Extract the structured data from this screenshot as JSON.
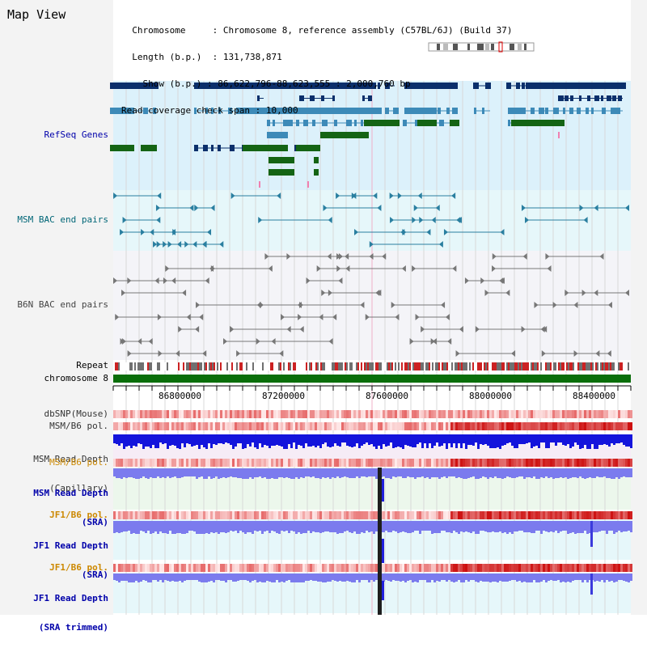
{
  "title": "Map View",
  "info": {
    "chromosome_label": "Chromosome",
    "chromosome_value": "Chromosome 8, reference assembly (C57BL/6J) (Build 37)",
    "length_label": "Length (b.p.)",
    "length_value": "131,738,871",
    "show_label": "Show (b.p.)",
    "show_value": "86,622,796-88,623,555 : 2,000,760 bp",
    "coverage_label": "Read coverage check span",
    "coverage_value": "10,000"
  },
  "tracks": {
    "refseq": "RefSeq Genes",
    "msm_bac": "MSM BAC end pairs",
    "b6n_bac": "B6N BAC end pairs",
    "repeat": "Repeat",
    "chromosome": "chromosome 8",
    "dbsnp": "dbSNP(Mouse)",
    "msm_b6_pol": "MSM/B6 pol.",
    "msm_depth_cap_1": "MSM Read Depth",
    "msm_depth_cap_2": "(Capillary)",
    "msm_b6_pol_sra": "MSM/B6 pol.",
    "msm_depth_sra_1": "MSM Read Depth",
    "msm_depth_sra_2": "(SRA)",
    "jf1_b6_pol_1": "JF1/B6 pol.",
    "jf1_depth_sra_1": "JF1 Read Depth",
    "jf1_depth_sra_2": "(SRA)",
    "jf1_b6_pol_2": "JF1/B6 pol.",
    "jf1_depth_trim_1": "JF1 Read Depth",
    "jf1_depth_trim_2": "(SRA trimmed)"
  },
  "axis_ticks": [
    "86800000",
    "87200000",
    "87600000",
    "88000000",
    "88400000"
  ],
  "colors": {
    "gene_dark": "#0b2f6b",
    "gene_mid": "#3d8ab8",
    "gene_green": "#146414",
    "chromosome_bar": "#0a6e0a",
    "label_navy": "#0000aa",
    "label_orange": "#cc8800",
    "label_teal": "#006677"
  }
}
